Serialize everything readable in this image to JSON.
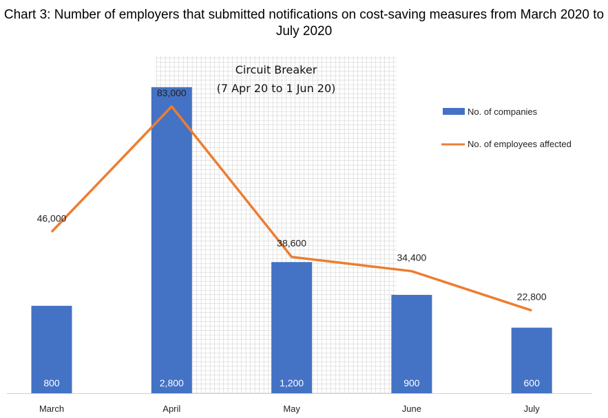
{
  "chart_data": {
    "type": "bar+line",
    "title": "Chart 3: Number of employers that submitted notifications on cost-saving measures from March 2020 to July 2020",
    "categories": [
      "March",
      "April",
      "May",
      "June",
      "July"
    ],
    "series": [
      {
        "name": "No. of companies",
        "type": "bar",
        "values": [
          800,
          2800,
          1200,
          900,
          600
        ],
        "labels": [
          "800",
          "2,800",
          "1,200",
          "900",
          "600"
        ],
        "color": "#4472C4",
        "ylim": [
          0,
          3000
        ]
      },
      {
        "name": "No. of employees affected",
        "type": "line",
        "values": [
          46000,
          83000,
          38600,
          34400,
          22800
        ],
        "labels": [
          "46,000",
          "83,000",
          "38,600",
          "34,400",
          "22,800"
        ],
        "color": "#ED7D31",
        "ylim": [
          0,
          90000
        ]
      }
    ],
    "annotation": {
      "line1": "Circuit Breaker",
      "line2": "(7 Apr 20 to 1 Jun 20)",
      "span": [
        "April",
        "May"
      ]
    },
    "legend": "right",
    "grid": false
  }
}
